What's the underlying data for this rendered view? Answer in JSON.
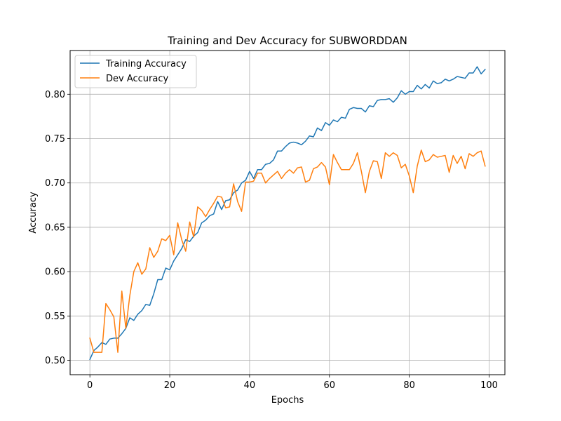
{
  "chart_data": {
    "type": "line",
    "title": "Training and Dev Accuracy for SUBWORDDAN",
    "xlabel": "Epochs",
    "ylabel": "Accuracy",
    "xlim": [
      -4.95,
      103.95
    ],
    "ylim": [
      0.4838,
      0.8493
    ],
    "xticks": [
      0,
      20,
      40,
      60,
      80,
      100
    ],
    "xtick_labels": [
      "0",
      "20",
      "40",
      "60",
      "80",
      "100"
    ],
    "yticks": [
      0.5,
      0.55,
      0.6,
      0.65,
      0.7,
      0.75,
      0.8
    ],
    "ytick_labels": [
      "0.50",
      "0.55",
      "0.60",
      "0.65",
      "0.70",
      "0.75",
      "0.80"
    ],
    "grid": true,
    "legend_position": "top-left",
    "x": [
      0,
      1,
      2,
      3,
      4,
      5,
      6,
      7,
      8,
      9,
      10,
      11,
      12,
      13,
      14,
      15,
      16,
      17,
      18,
      19,
      20,
      21,
      22,
      23,
      24,
      25,
      26,
      27,
      28,
      29,
      30,
      31,
      32,
      33,
      34,
      35,
      36,
      37,
      38,
      39,
      40,
      41,
      42,
      43,
      44,
      45,
      46,
      47,
      48,
      49,
      50,
      51,
      52,
      53,
      54,
      55,
      56,
      57,
      58,
      59,
      60,
      61,
      62,
      63,
      64,
      65,
      66,
      67,
      68,
      69,
      70,
      71,
      72,
      73,
      74,
      75,
      76,
      77,
      78,
      79,
      80,
      81,
      82,
      83,
      84,
      85,
      86,
      87,
      88,
      89,
      90,
      91,
      92,
      93,
      94,
      95,
      96,
      97,
      98,
      99
    ],
    "series": [
      {
        "name": "Training Accuracy",
        "color": "#1f77b4",
        "values": [
          0.501,
          0.511,
          0.515,
          0.52,
          0.518,
          0.524,
          0.525,
          0.525,
          0.53,
          0.536,
          0.548,
          0.545,
          0.552,
          0.556,
          0.563,
          0.562,
          0.575,
          0.591,
          0.591,
          0.604,
          0.602,
          0.612,
          0.619,
          0.626,
          0.636,
          0.634,
          0.64,
          0.644,
          0.655,
          0.658,
          0.663,
          0.665,
          0.679,
          0.67,
          0.68,
          0.681,
          0.689,
          0.692,
          0.7,
          0.703,
          0.713,
          0.705,
          0.715,
          0.715,
          0.721,
          0.722,
          0.726,
          0.736,
          0.736,
          0.741,
          0.745,
          0.746,
          0.745,
          0.743,
          0.747,
          0.753,
          0.752,
          0.762,
          0.759,
          0.768,
          0.765,
          0.771,
          0.769,
          0.774,
          0.773,
          0.783,
          0.785,
          0.784,
          0.784,
          0.78,
          0.787,
          0.786,
          0.793,
          0.794,
          0.794,
          0.795,
          0.791,
          0.796,
          0.804,
          0.8,
          0.803,
          0.803,
          0.81,
          0.806,
          0.811,
          0.807,
          0.815,
          0.812,
          0.813,
          0.817,
          0.815,
          0.817,
          0.82,
          0.819,
          0.818,
          0.824,
          0.824,
          0.831,
          0.823,
          0.828
        ]
      },
      {
        "name": "Dev Accuracy",
        "color": "#ff7f0e",
        "values": [
          0.525,
          0.509,
          0.509,
          0.509,
          0.564,
          0.557,
          0.549,
          0.509,
          0.578,
          0.536,
          0.573,
          0.6,
          0.61,
          0.597,
          0.603,
          0.627,
          0.616,
          0.623,
          0.637,
          0.635,
          0.641,
          0.619,
          0.655,
          0.636,
          0.623,
          0.656,
          0.639,
          0.673,
          0.669,
          0.662,
          0.67,
          0.677,
          0.685,
          0.684,
          0.672,
          0.673,
          0.699,
          0.679,
          0.668,
          0.701,
          0.701,
          0.702,
          0.711,
          0.711,
          0.7,
          0.705,
          0.709,
          0.713,
          0.705,
          0.711,
          0.715,
          0.711,
          0.717,
          0.718,
          0.701,
          0.703,
          0.716,
          0.718,
          0.723,
          0.718,
          0.698,
          0.732,
          0.723,
          0.715,
          0.715,
          0.715,
          0.722,
          0.734,
          0.713,
          0.689,
          0.713,
          0.725,
          0.724,
          0.705,
          0.734,
          0.73,
          0.734,
          0.731,
          0.717,
          0.721,
          0.708,
          0.689,
          0.719,
          0.737,
          0.724,
          0.726,
          0.732,
          0.729,
          0.73,
          0.731,
          0.712,
          0.731,
          0.722,
          0.73,
          0.716,
          0.733,
          0.73,
          0.734,
          0.736,
          0.719
        ]
      }
    ]
  }
}
